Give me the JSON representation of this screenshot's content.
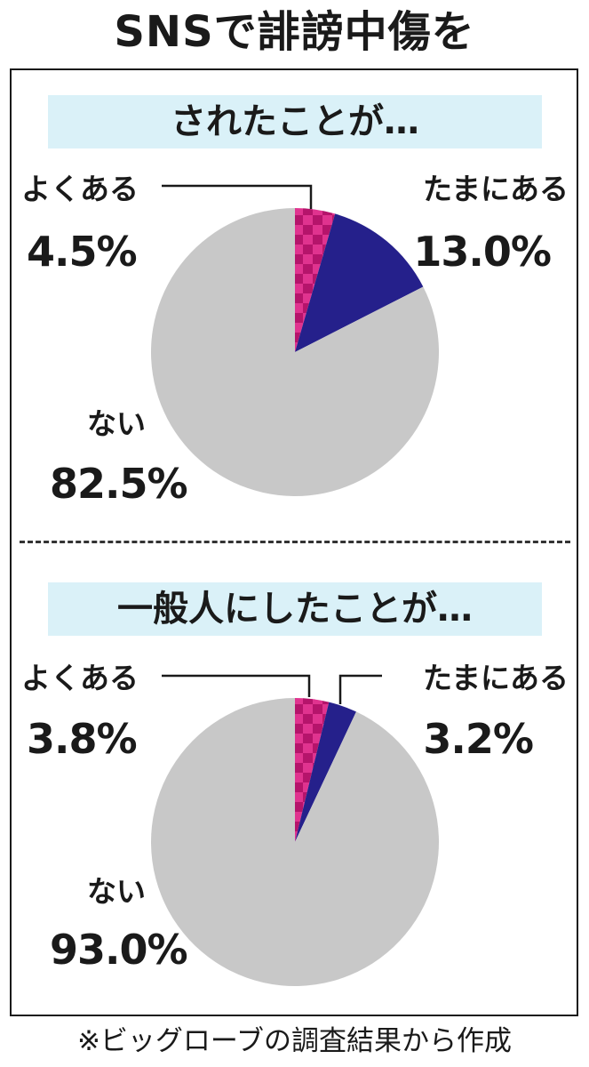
{
  "title": "SNSで誹謗中傷を",
  "footnote": "※ビッグローブの調査結果から作成",
  "colors": {
    "often": "#e0338f",
    "often_check": "#b5146b",
    "sometimes": "#25208b",
    "never": "#c8c8c8",
    "banner": "#daf1f8"
  },
  "chart_data": [
    {
      "type": "pie",
      "title": "されたことが…",
      "categories": [
        "よくある",
        "たまにある",
        "ない"
      ],
      "values": [
        4.5,
        13.0,
        82.5
      ],
      "value_labels": [
        "4.5%",
        "13.0%",
        "82.5%"
      ],
      "start_angle_deg": 0,
      "direction": "clockwise",
      "legend": "none"
    },
    {
      "type": "pie",
      "title": "一般人にしたことが…",
      "categories": [
        "よくある",
        "たまにある",
        "ない"
      ],
      "values": [
        3.8,
        3.2,
        93.0
      ],
      "value_labels": [
        "3.8%",
        "3.2%",
        "93.0%"
      ],
      "start_angle_deg": 0,
      "direction": "clockwise",
      "legend": "none"
    }
  ]
}
